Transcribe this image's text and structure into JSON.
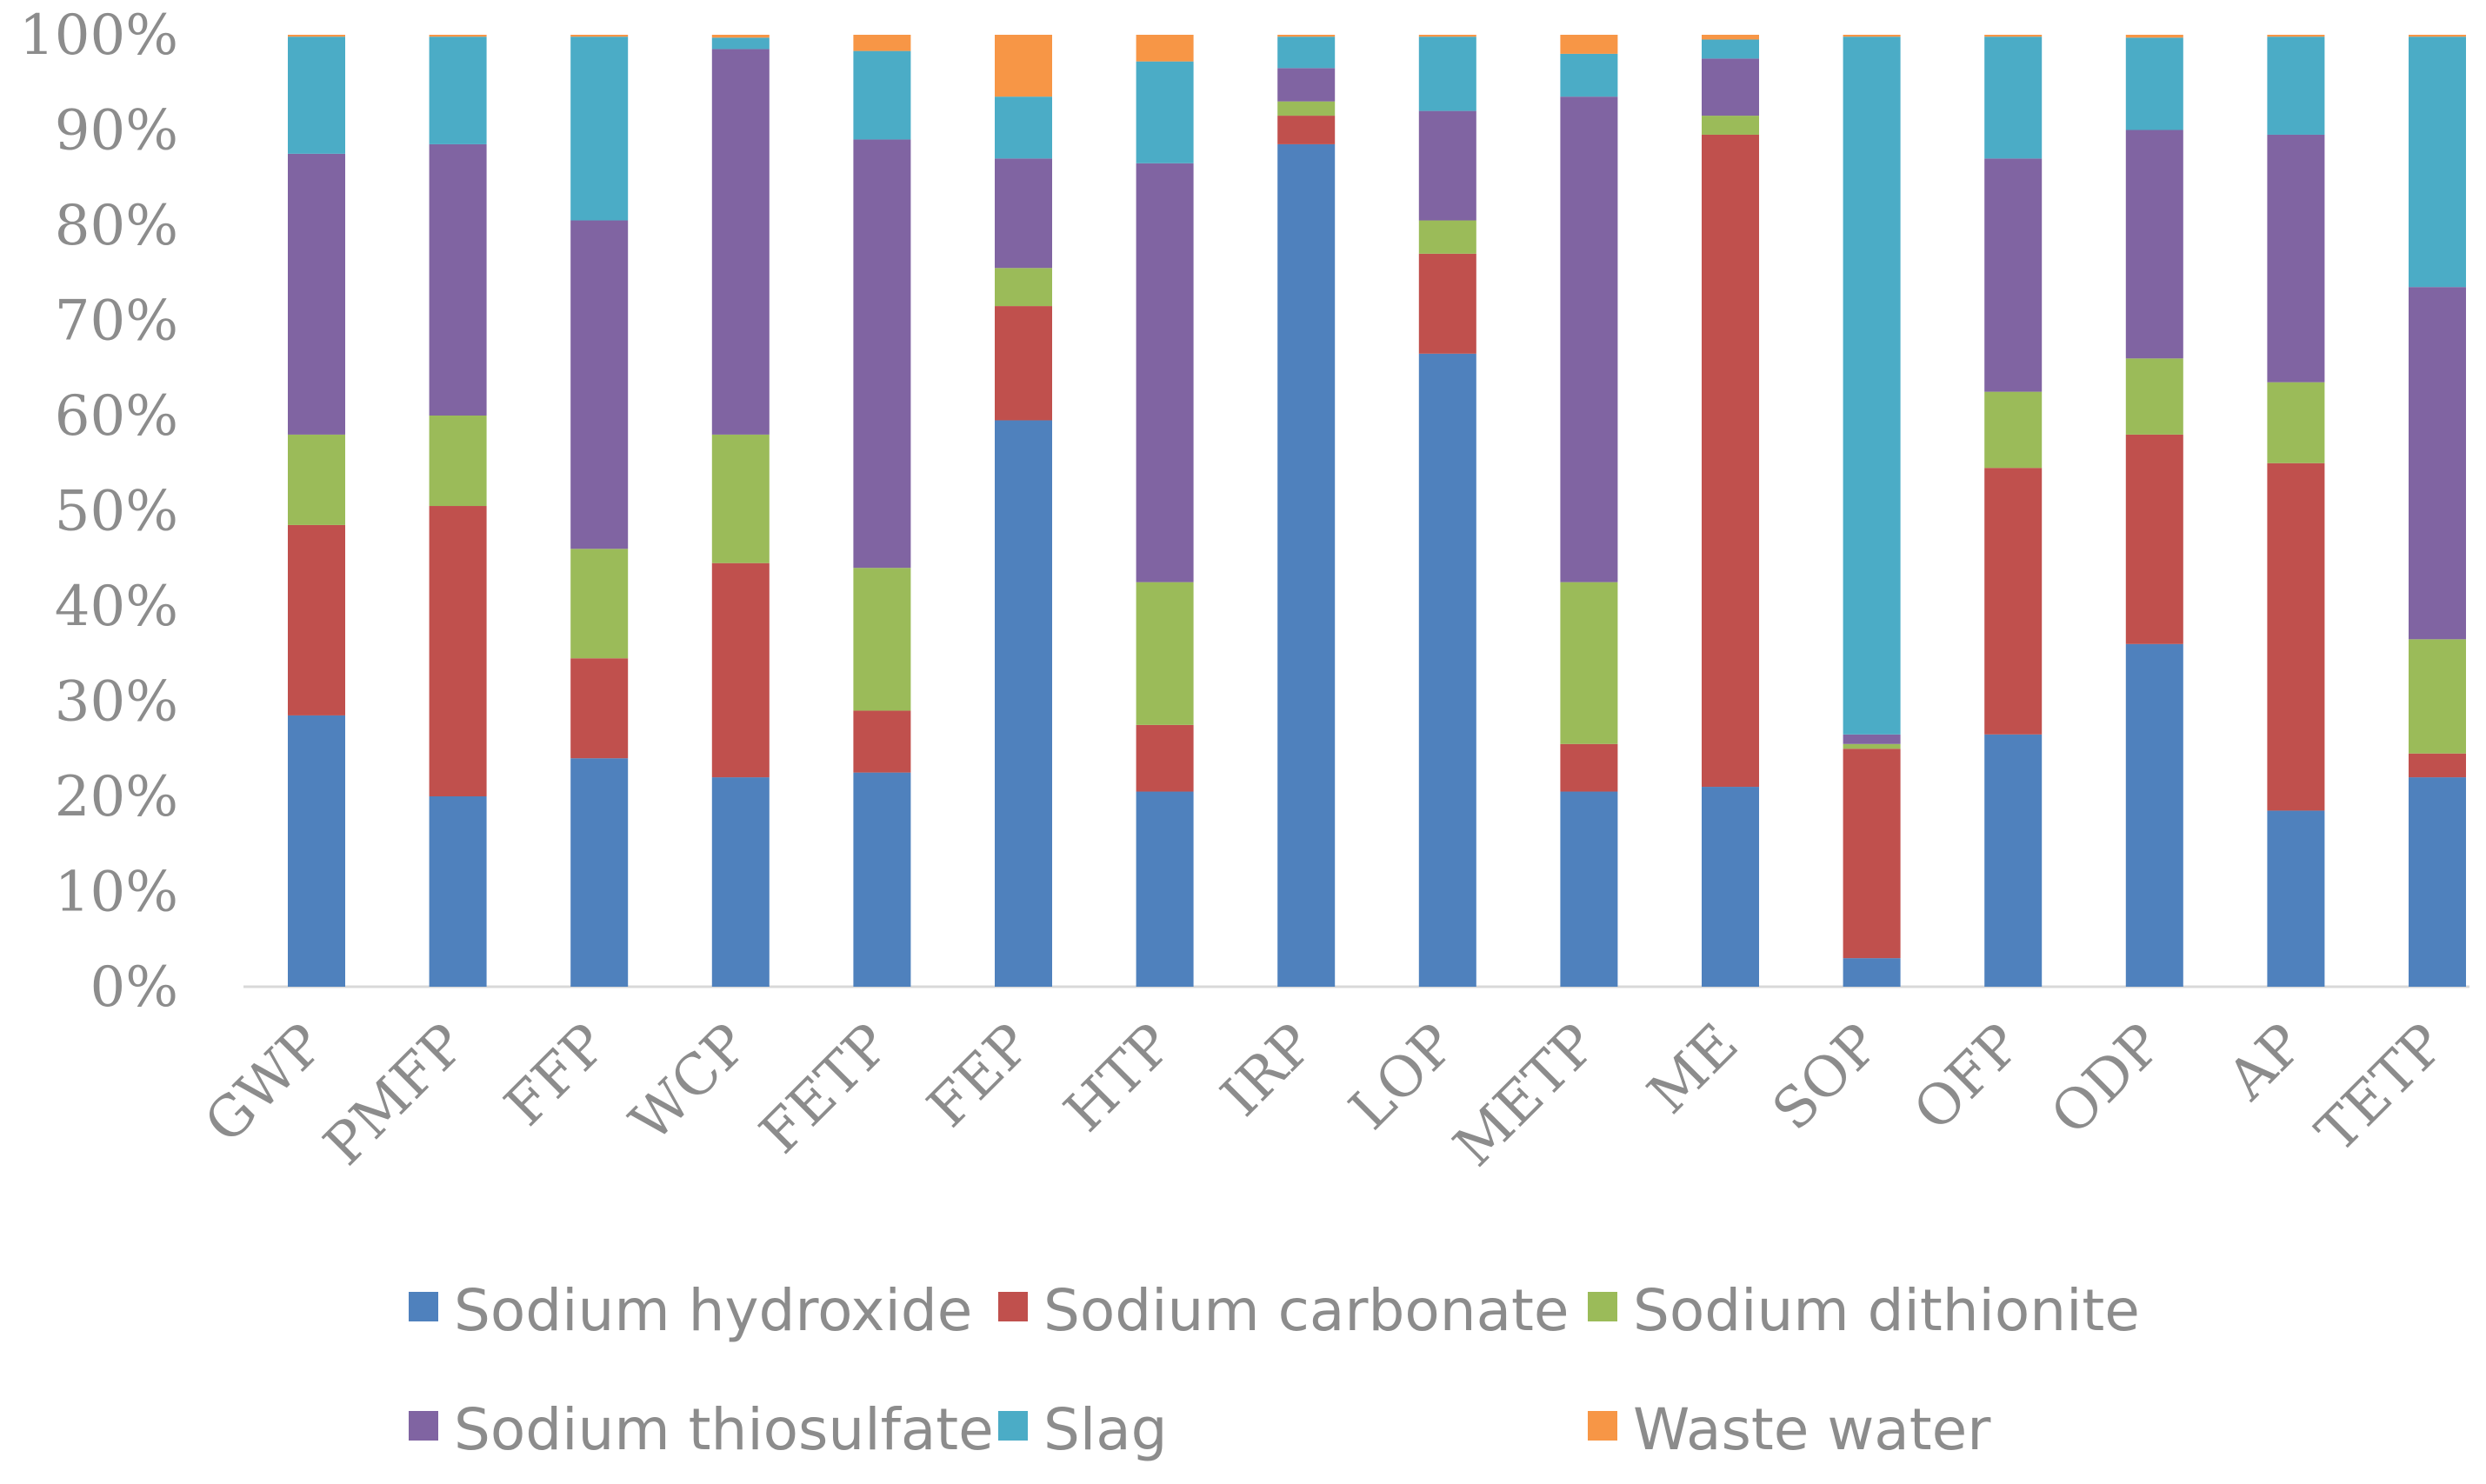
{
  "chart_data": {
    "type": "bar",
    "stacked": true,
    "percent": true,
    "title": "",
    "xlabel": "",
    "ylabel": "",
    "ylim": [
      0,
      100
    ],
    "yticks": [
      "0%",
      "10%",
      "20%",
      "30%",
      "40%",
      "50%",
      "60%",
      "70%",
      "80%",
      "90%",
      "100%"
    ],
    "grid": false,
    "legend_position": "bottom",
    "categories": [
      "GWP",
      "PMFP",
      "FFP",
      "WCP",
      "FETP",
      "FEP",
      "HTP",
      "IRP",
      "LOP",
      "METP",
      "ME",
      "SOP",
      "OFP",
      "ODP",
      "AP",
      "TETP"
    ],
    "series": [
      {
        "name": "Sodium hydroxide",
        "color": "#4f81bd",
        "values": [
          28.5,
          20.0,
          24.0,
          22.0,
          22.5,
          59.5,
          20.5,
          88.5,
          66.5,
          20.5,
          21.0,
          3.0,
          26.5,
          36.0,
          18.5,
          22.0
        ]
      },
      {
        "name": "Sodium carbonate",
        "color": "#c0504d",
        "values": [
          20.0,
          30.5,
          10.5,
          22.5,
          6.5,
          12.0,
          7.0,
          3.0,
          10.5,
          5.0,
          68.5,
          22.0,
          28.0,
          22.0,
          36.5,
          2.5
        ]
      },
      {
        "name": "Sodium dithionite",
        "color": "#9bbb59",
        "values": [
          9.5,
          9.5,
          11.5,
          13.5,
          15.0,
          4.0,
          15.0,
          1.5,
          3.5,
          17.0,
          2.0,
          0.5,
          8.0,
          8.0,
          8.5,
          12.0
        ]
      },
      {
        "name": "Sodium thiosulfate",
        "color": "#8064a2",
        "values": [
          29.5,
          28.5,
          34.5,
          40.5,
          45.0,
          11.5,
          44.0,
          3.5,
          11.5,
          51.0,
          6.0,
          1.0,
          24.5,
          24.0,
          26.0,
          37.0
        ]
      },
      {
        "name": "Slag",
        "color": "#4bacc6",
        "values": [
          12.3,
          11.3,
          19.3,
          1.2,
          9.3,
          6.5,
          10.7,
          3.3,
          7.8,
          4.5,
          2.0,
          73.3,
          12.8,
          9.7,
          10.3,
          26.3
        ]
      },
      {
        "name": "Waste water",
        "color": "#f79646",
        "values": [
          0.2,
          0.2,
          0.2,
          0.3,
          1.7,
          6.5,
          2.8,
          0.2,
          0.2,
          2.0,
          0.5,
          0.2,
          0.2,
          0.3,
          0.2,
          0.2
        ]
      }
    ]
  }
}
